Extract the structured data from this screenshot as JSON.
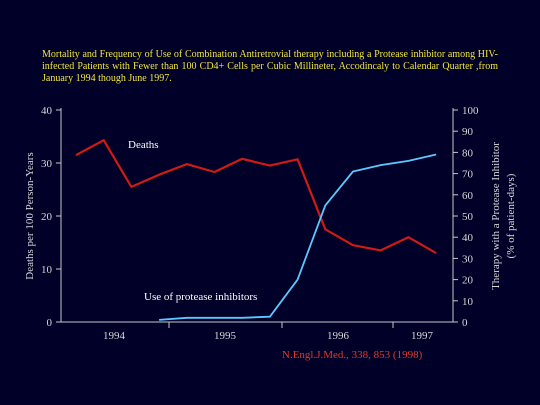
{
  "slide": {
    "title": "Mortality and Frequency of Use of Combination Antiretrovial therapy including a Protease inhibitor among HIV-infected Patients with Fewer than 100 CD4+ Cells per Cubic Millineter, Accodincaly to Calendar Quarter ,from January 1994 though June 1997.",
    "source": "N.Engl.J.Med., 338, 853 (1998)"
  },
  "chart_data": {
    "type": "line",
    "title": "Mortality and Frequency of Use of Combination Antiretrovial therapy including a Protease inhibitor among HIV-infected Patients with Fewer than 100 CD4+ Cells per Cubic Millineter, Accodincaly to Calendar Quarter ,from January 1994 though June 1997.",
    "xlabel": "",
    "x_ticks": [
      "1994",
      "1995",
      "1996",
      "1997"
    ],
    "x": [
      "1994 Q1",
      "1994 Q2",
      "1994 Q3",
      "1994 Q4",
      "1995 Q1",
      "1995 Q2",
      "1995 Q3",
      "1995 Q4",
      "1996 Q1",
      "1996 Q2",
      "1996 Q3",
      "1996 Q4",
      "1997 Q1",
      "1997 Q2"
    ],
    "y_left": {
      "label": "Deaths per 100 Person-Years",
      "ticks": [
        0,
        10,
        20,
        30,
        40
      ],
      "lim": [
        0,
        40
      ]
    },
    "y_right": {
      "label_line1": "Therapy with a  Protease Inhibitor",
      "label_line2": "(% of patient-days)",
      "ticks": [
        0,
        10,
        20,
        30,
        40,
        50,
        60,
        70,
        80,
        90,
        100
      ],
      "lim": [
        0,
        100
      ]
    },
    "series": [
      {
        "name": "Deaths",
        "axis": "left",
        "color": "#d01a14",
        "values": [
          31.5,
          34.3,
          25.5,
          27.8,
          29.8,
          28.3,
          30.8,
          29.5,
          30.7,
          17.5,
          14.5,
          13.5,
          16.0,
          13.0
        ]
      },
      {
        "name": "Use of protease inhibitors",
        "axis": "right",
        "color": "#5cc8ff",
        "values": [
          null,
          null,
          null,
          1.0,
          2.0,
          2.0,
          2.0,
          2.5,
          20.0,
          55.0,
          71.0,
          74.0,
          76.0,
          79.0
        ]
      }
    ],
    "grid": false,
    "legend": "inline labels"
  }
}
